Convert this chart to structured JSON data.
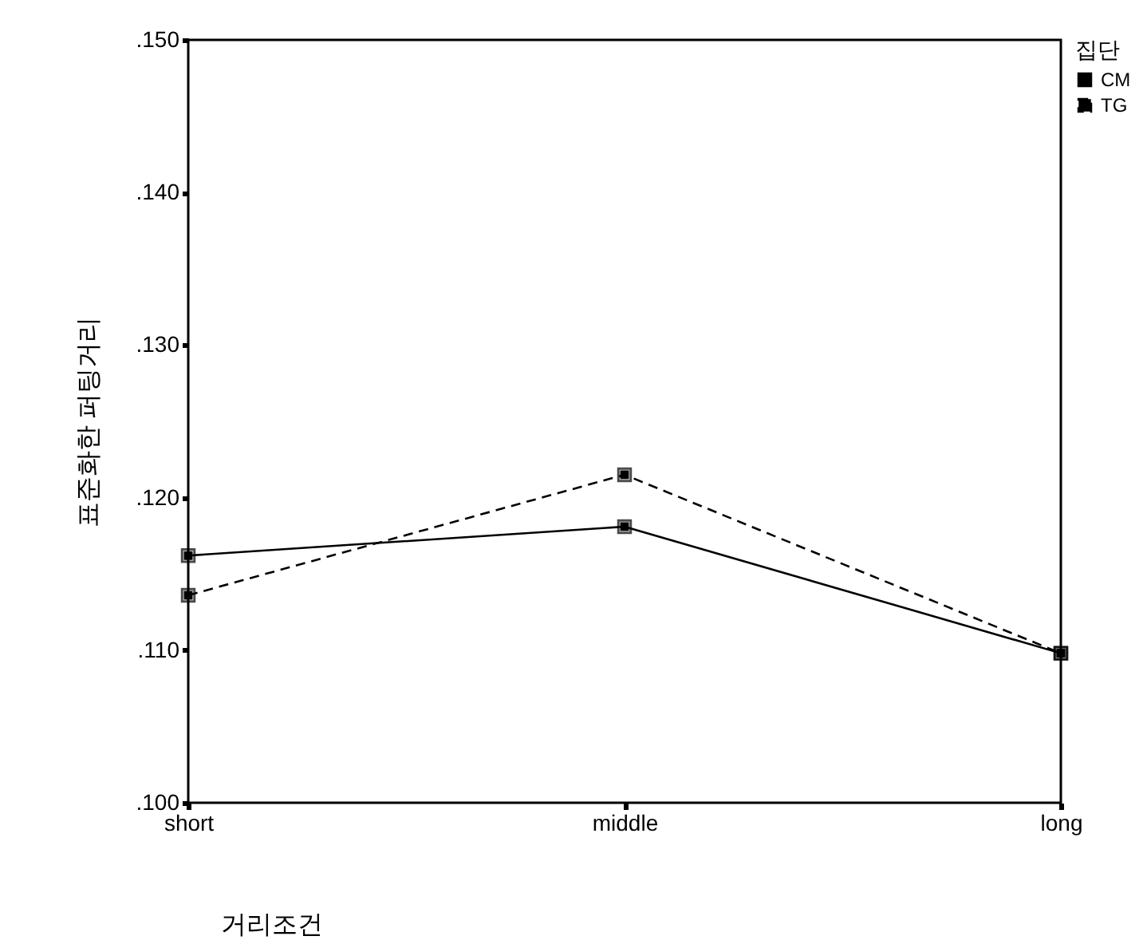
{
  "chart_data": {
    "type": "line",
    "xlabel": "거리조건",
    "ylabel": "표준화한 퍼팅거리",
    "legend_title": "집단",
    "categories": [
      "short",
      "middle",
      "long"
    ],
    "series": [
      {
        "name": "CM",
        "color": "#000000",
        "line_style": "solid",
        "values": [
          0.1162,
          0.1181,
          0.1098
        ]
      },
      {
        "name": "TG",
        "color": "#000000",
        "line_style": "dashed",
        "values": [
          0.1136,
          0.1215,
          0.1098
        ]
      }
    ],
    "ylim": [
      0.1,
      0.15
    ],
    "yticks": [
      {
        "value": 0.1,
        "label": ".100"
      },
      {
        "value": 0.11,
        "label": ".110"
      },
      {
        "value": 0.12,
        "label": ".120"
      },
      {
        "value": 0.13,
        "label": ".130"
      },
      {
        "value": 0.14,
        "label": ".140"
      },
      {
        "value": 0.15,
        "label": ".150"
      }
    ],
    "marker": "square",
    "grid": false,
    "legend": "right"
  }
}
